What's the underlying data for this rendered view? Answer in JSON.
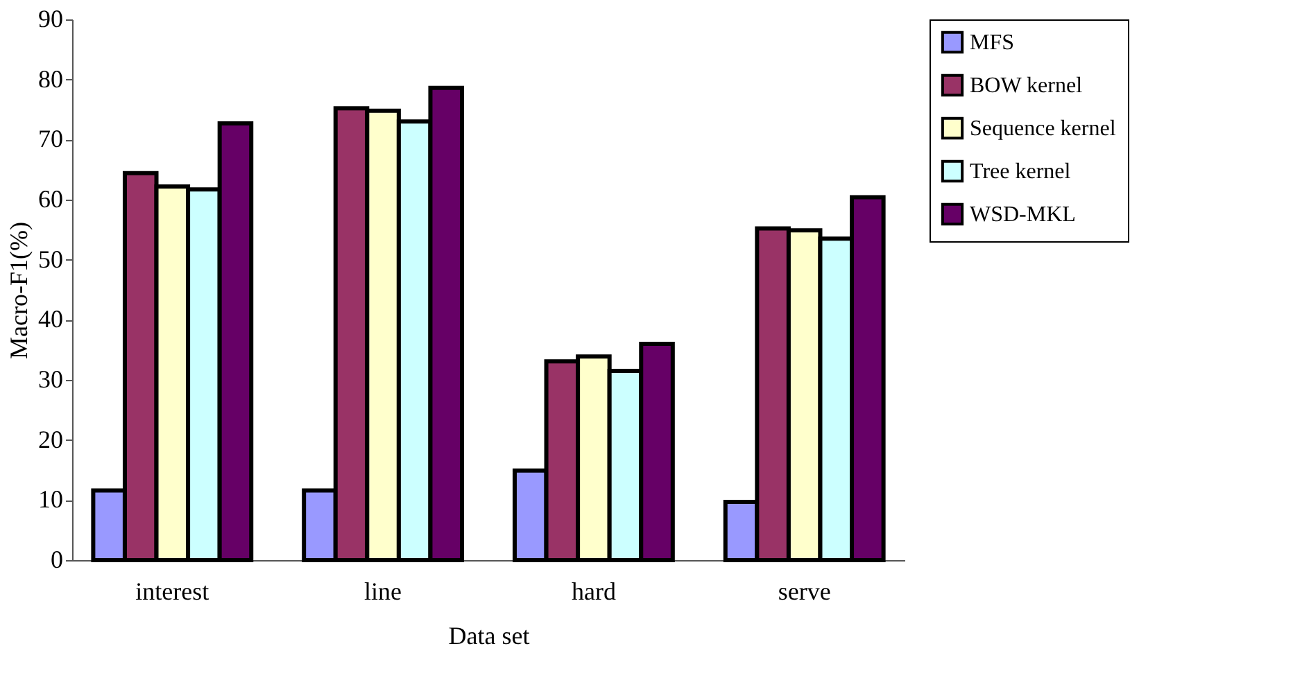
{
  "chart_data": {
    "type": "bar",
    "xlabel": "Data set",
    "ylabel": "Macro-F1(%)",
    "categories": [
      "interest",
      "line",
      "hard",
      "serve"
    ],
    "series": [
      {
        "name": "MFS",
        "color": "#9999ff",
        "values": [
          11.6,
          11.6,
          14.9,
          9.7
        ]
      },
      {
        "name": "BOW kernel",
        "color": "#993366",
        "values": [
          64.4,
          75.2,
          33.1,
          55.2
        ]
      },
      {
        "name": "Sequence kernel",
        "color": "#ffffcc",
        "values": [
          62.2,
          74.8,
          33.9,
          54.9
        ]
      },
      {
        "name": "Tree kernel",
        "color": "#ccffff",
        "values": [
          61.7,
          73.0,
          31.5,
          53.5
        ]
      },
      {
        "name": "WSD-MKL",
        "color": "#660066",
        "values": [
          72.7,
          78.6,
          36.0,
          60.4
        ]
      }
    ],
    "ylim": [
      0,
      90
    ],
    "yticks": [
      0,
      10,
      20,
      30,
      40,
      50,
      60,
      70,
      80,
      90
    ],
    "grid": false,
    "legend": "right"
  }
}
